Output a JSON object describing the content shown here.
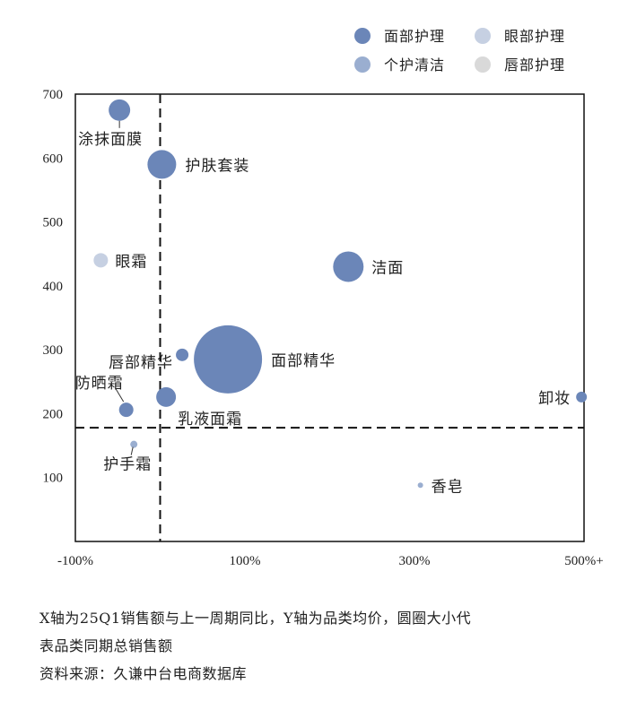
{
  "chart_data": {
    "type": "scatter",
    "xlim": [
      -100,
      500
    ],
    "ylim": [
      0,
      700
    ],
    "x_ticks": [
      {
        "value": -100,
        "label": "-100%"
      },
      {
        "value": 100,
        "label": "100%"
      },
      {
        "value": 300,
        "label": "300%"
      },
      {
        "value": 500,
        "label": "500%+"
      }
    ],
    "y_ticks": [
      100,
      200,
      300,
      400,
      500,
      600,
      700
    ],
    "ref_x": 0,
    "ref_y": 178,
    "grid": false,
    "legend_position": "top-right",
    "series": [
      {
        "name": "面部护理",
        "color": "#6b86b8"
      },
      {
        "name": "眼部护理",
        "color": "#c6d0e2"
      },
      {
        "name": "个护清洁",
        "color": "#9aaed0"
      },
      {
        "name": "唇部护理",
        "color": "#d9d9d9"
      }
    ],
    "points": [
      {
        "label": "涂抹面膜",
        "series": "面部护理",
        "x": -48,
        "y": 675,
        "size": 12
      },
      {
        "label": "护肤套装",
        "series": "面部护理",
        "x": 2,
        "y": 590,
        "size": 16
      },
      {
        "label": "眼霜",
        "series": "眼部护理",
        "x": -70,
        "y": 440,
        "size": 8
      },
      {
        "label": "洁面",
        "series": "面部护理",
        "x": 222,
        "y": 430,
        "size": 17
      },
      {
        "label": "面部精华",
        "series": "面部护理",
        "x": 80,
        "y": 285,
        "size": 38
      },
      {
        "label": "唇部精华",
        "series": "面部护理",
        "x": 26,
        "y": 292,
        "size": 7
      },
      {
        "label": "乳液面霜",
        "series": "面部护理",
        "x": 7,
        "y": 226,
        "size": 11
      },
      {
        "label": "防晒霜",
        "series": "面部护理",
        "x": -40,
        "y": 206,
        "size": 8
      },
      {
        "label": "卸妆",
        "series": "面部护理",
        "x": 497,
        "y": 226,
        "size": 6
      },
      {
        "label": "护手霜",
        "series": "个护清洁",
        "x": -31,
        "y": 152,
        "size": 4
      },
      {
        "label": "香皂",
        "series": "个护清洁",
        "x": 307,
        "y": 88,
        "size": 3
      }
    ]
  },
  "notes": {
    "line1": "X轴为25Q1销售额与上一周期同比，Y轴为品类均价，圆圈大小代",
    "line2": "表品类同期总销售额",
    "source": "资料来源：久谦中台电商数据库"
  }
}
